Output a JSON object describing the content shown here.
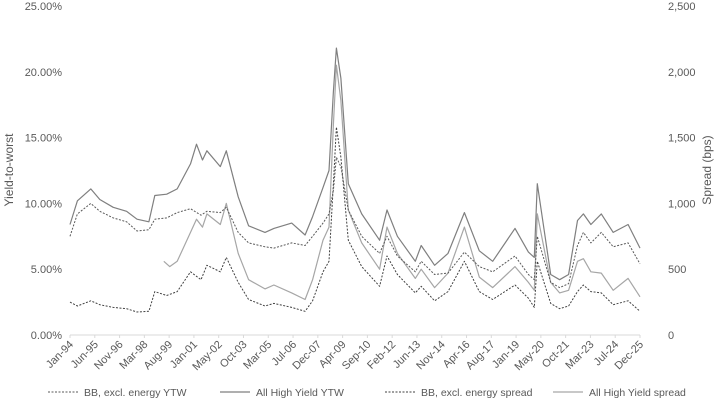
{
  "chart_data": {
    "type": "line",
    "title": "",
    "xlabel": "",
    "ylabel_left": "Yield-to-worst",
    "ylabel_right": "Spread (bps)",
    "left_axis": {
      "min": 0,
      "max": 25,
      "ticks": [
        "0.00%",
        "5.00%",
        "10.00%",
        "15.00%",
        "20.00%",
        "25.00%"
      ]
    },
    "right_axis": {
      "min": 0,
      "max": 2500,
      "ticks": [
        "0",
        "500",
        "1,000",
        "1,500",
        "2,000",
        "2,500"
      ]
    },
    "x_range": [
      "1994-01",
      "2025-12"
    ],
    "x_tick_labels": [
      "Jan-94",
      "Jun-95",
      "Nov-96",
      "Mar-98",
      "Aug-99",
      "Jan-01",
      "May-02",
      "Oct-03",
      "Mar-05",
      "Jul-06",
      "Dec-07",
      "Apr-09",
      "Sep-10",
      "Feb-12",
      "Jun-13",
      "Nov-14",
      "Apr-16",
      "Aug-17",
      "Jan-19",
      "May-20",
      "Oct-21",
      "Mar-23",
      "Jul-24",
      "Dec-25"
    ],
    "grid": false,
    "legend_position": "bottom",
    "series": [
      {
        "name": "BB, excl. energy YTW",
        "axis": "left",
        "color": "#595959",
        "style": "dotted",
        "points": [
          [
            "1994-01",
            7.5
          ],
          [
            "1994-06",
            9.2
          ],
          [
            "1995-03",
            10.0
          ],
          [
            "1995-09",
            9.4
          ],
          [
            "1996-06",
            8.9
          ],
          [
            "1997-03",
            8.6
          ],
          [
            "1997-10",
            7.9
          ],
          [
            "1998-06",
            8.0
          ],
          [
            "1998-10",
            8.8
          ],
          [
            "1999-06",
            8.9
          ],
          [
            "2000-01",
            9.3
          ],
          [
            "2000-10",
            9.6
          ],
          [
            "2001-05",
            9.1
          ],
          [
            "2001-09",
            9.4
          ],
          [
            "2002-06",
            9.3
          ],
          [
            "2002-10",
            9.7
          ],
          [
            "2003-06",
            7.8
          ],
          [
            "2004-01",
            7.0
          ],
          [
            "2004-12",
            6.7
          ],
          [
            "2005-06",
            6.6
          ],
          [
            "2006-06",
            7.0
          ],
          [
            "2007-03",
            6.8
          ],
          [
            "2007-08",
            7.5
          ],
          [
            "2008-03",
            8.5
          ],
          [
            "2008-07",
            9.2
          ],
          [
            "2008-10",
            11.0
          ],
          [
            "2008-12",
            13.5
          ],
          [
            "2009-03",
            12.8
          ],
          [
            "2009-08",
            9.5
          ],
          [
            "2010-05",
            7.5
          ],
          [
            "2011-05",
            6.2
          ],
          [
            "2011-10",
            7.5
          ],
          [
            "2012-05",
            6.0
          ],
          [
            "2013-05",
            4.8
          ],
          [
            "2013-09",
            5.6
          ],
          [
            "2014-06",
            4.6
          ],
          [
            "2015-03",
            4.7
          ],
          [
            "2016-02",
            6.3
          ],
          [
            "2016-12",
            5.2
          ],
          [
            "2017-09",
            4.8
          ],
          [
            "2018-12",
            6.0
          ],
          [
            "2019-09",
            4.6
          ],
          [
            "2020-01",
            4.2
          ],
          [
            "2020-03",
            7.5
          ],
          [
            "2020-12",
            4.0
          ],
          [
            "2021-06",
            3.6
          ],
          [
            "2021-12",
            3.9
          ],
          [
            "2022-06",
            6.8
          ],
          [
            "2022-10",
            7.8
          ],
          [
            "2023-03",
            7.0
          ],
          [
            "2023-10",
            7.8
          ],
          [
            "2024-06",
            6.7
          ],
          [
            "2025-04",
            7.0
          ],
          [
            "2025-12",
            5.4
          ]
        ]
      },
      {
        "name": "All High Yield YTW",
        "axis": "left",
        "color": "#7f7f7f",
        "style": "solid",
        "points": [
          [
            "1994-01",
            8.4
          ],
          [
            "1994-06",
            10.2
          ],
          [
            "1995-03",
            11.1
          ],
          [
            "1995-09",
            10.3
          ],
          [
            "1996-06",
            9.7
          ],
          [
            "1997-03",
            9.4
          ],
          [
            "1997-10",
            8.8
          ],
          [
            "1998-06",
            8.6
          ],
          [
            "1998-10",
            10.6
          ],
          [
            "1999-06",
            10.7
          ],
          [
            "2000-01",
            11.1
          ],
          [
            "2000-10",
            13.0
          ],
          [
            "2001-02",
            14.5
          ],
          [
            "2001-06",
            13.3
          ],
          [
            "2001-09",
            14.0
          ],
          [
            "2002-06",
            12.8
          ],
          [
            "2002-10",
            14.0
          ],
          [
            "2003-06",
            10.5
          ],
          [
            "2004-01",
            8.3
          ],
          [
            "2004-12",
            7.8
          ],
          [
            "2005-06",
            8.1
          ],
          [
            "2006-06",
            8.5
          ],
          [
            "2007-03",
            7.6
          ],
          [
            "2007-08",
            9.0
          ],
          [
            "2008-03",
            11.2
          ],
          [
            "2008-07",
            12.5
          ],
          [
            "2008-10",
            18.5
          ],
          [
            "2008-12",
            21.8
          ],
          [
            "2009-03",
            19.5
          ],
          [
            "2009-08",
            11.5
          ],
          [
            "2010-05",
            9.2
          ],
          [
            "2011-05",
            7.2
          ],
          [
            "2011-10",
            9.5
          ],
          [
            "2012-05",
            7.5
          ],
          [
            "2013-05",
            5.6
          ],
          [
            "2013-09",
            6.8
          ],
          [
            "2014-06",
            5.3
          ],
          [
            "2015-03",
            6.2
          ],
          [
            "2016-02",
            9.3
          ],
          [
            "2016-12",
            6.4
          ],
          [
            "2017-09",
            5.6
          ],
          [
            "2018-12",
            8.1
          ],
          [
            "2019-09",
            6.3
          ],
          [
            "2020-01",
            5.9
          ],
          [
            "2020-03",
            11.5
          ],
          [
            "2020-12",
            4.6
          ],
          [
            "2021-06",
            4.2
          ],
          [
            "2021-12",
            4.6
          ],
          [
            "2022-06",
            8.7
          ],
          [
            "2022-10",
            9.2
          ],
          [
            "2023-03",
            8.4
          ],
          [
            "2023-10",
            9.2
          ],
          [
            "2024-06",
            7.8
          ],
          [
            "2025-04",
            8.4
          ],
          [
            "2025-12",
            6.6
          ]
        ]
      },
      {
        "name": "BB, excl. energy spread",
        "axis": "right",
        "color": "#404040",
        "style": "dotted",
        "points": [
          [
            "1994-01",
            250
          ],
          [
            "1994-06",
            220
          ],
          [
            "1995-03",
            260
          ],
          [
            "1995-09",
            230
          ],
          [
            "1996-06",
            210
          ],
          [
            "1997-03",
            200
          ],
          [
            "1997-10",
            175
          ],
          [
            "1998-06",
            180
          ],
          [
            "1998-10",
            330
          ],
          [
            "1999-06",
            300
          ],
          [
            "2000-01",
            330
          ],
          [
            "2000-10",
            480
          ],
          [
            "2001-05",
            420
          ],
          [
            "2001-09",
            530
          ],
          [
            "2002-06",
            480
          ],
          [
            "2002-10",
            590
          ],
          [
            "2003-06",
            400
          ],
          [
            "2004-01",
            270
          ],
          [
            "2004-12",
            220
          ],
          [
            "2005-06",
            240
          ],
          [
            "2006-06",
            210
          ],
          [
            "2007-03",
            180
          ],
          [
            "2007-08",
            260
          ],
          [
            "2008-03",
            480
          ],
          [
            "2008-07",
            560
          ],
          [
            "2008-10",
            1150
          ],
          [
            "2008-12",
            1580
          ],
          [
            "2009-03",
            1350
          ],
          [
            "2009-08",
            720
          ],
          [
            "2010-05",
            520
          ],
          [
            "2011-05",
            370
          ],
          [
            "2011-10",
            600
          ],
          [
            "2012-05",
            460
          ],
          [
            "2013-05",
            320
          ],
          [
            "2013-09",
            370
          ],
          [
            "2014-06",
            260
          ],
          [
            "2015-03",
            330
          ],
          [
            "2016-02",
            560
          ],
          [
            "2016-12",
            330
          ],
          [
            "2017-09",
            270
          ],
          [
            "2018-12",
            380
          ],
          [
            "2019-09",
            280
          ],
          [
            "2020-01",
            210
          ],
          [
            "2020-03",
            560
          ],
          [
            "2020-12",
            240
          ],
          [
            "2021-06",
            200
          ],
          [
            "2021-12",
            220
          ],
          [
            "2022-06",
            330
          ],
          [
            "2022-10",
            380
          ],
          [
            "2023-03",
            330
          ],
          [
            "2023-10",
            320
          ],
          [
            "2024-06",
            230
          ],
          [
            "2025-04",
            260
          ],
          [
            "2025-12",
            180
          ]
        ]
      },
      {
        "name": "All High Yield spread",
        "axis": "right",
        "color": "#a6a6a6",
        "style": "solid",
        "points": [
          [
            "1999-04",
            560
          ],
          [
            "1999-08",
            520
          ],
          [
            "2000-01",
            560
          ],
          [
            "2000-10",
            780
          ],
          [
            "2001-02",
            880
          ],
          [
            "2001-06",
            820
          ],
          [
            "2001-09",
            920
          ],
          [
            "2002-06",
            840
          ],
          [
            "2002-10",
            1000
          ],
          [
            "2003-06",
            620
          ],
          [
            "2004-01",
            420
          ],
          [
            "2004-12",
            350
          ],
          [
            "2005-06",
            380
          ],
          [
            "2006-06",
            320
          ],
          [
            "2007-03",
            270
          ],
          [
            "2007-08",
            420
          ],
          [
            "2008-03",
            720
          ],
          [
            "2008-07",
            820
          ],
          [
            "2008-10",
            1600
          ],
          [
            "2008-12",
            2050
          ],
          [
            "2009-03",
            1780
          ],
          [
            "2009-08",
            950
          ],
          [
            "2010-05",
            700
          ],
          [
            "2011-05",
            500
          ],
          [
            "2011-10",
            820
          ],
          [
            "2012-05",
            620
          ],
          [
            "2013-05",
            430
          ],
          [
            "2013-09",
            500
          ],
          [
            "2014-06",
            360
          ],
          [
            "2015-03",
            470
          ],
          [
            "2016-02",
            820
          ],
          [
            "2016-12",
            440
          ],
          [
            "2017-09",
            360
          ],
          [
            "2018-12",
            520
          ],
          [
            "2019-09",
            400
          ],
          [
            "2020-01",
            340
          ],
          [
            "2020-03",
            920
          ],
          [
            "2020-12",
            400
          ],
          [
            "2021-06",
            320
          ],
          [
            "2021-12",
            340
          ],
          [
            "2022-06",
            560
          ],
          [
            "2022-10",
            580
          ],
          [
            "2023-03",
            480
          ],
          [
            "2023-10",
            470
          ],
          [
            "2024-06",
            340
          ],
          [
            "2025-04",
            430
          ],
          [
            "2025-12",
            290
          ]
        ]
      }
    ]
  }
}
